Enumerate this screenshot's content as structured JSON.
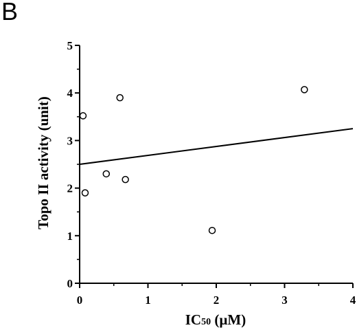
{
  "panel_label": "B",
  "chart_data": {
    "type": "scatter",
    "title": "",
    "xlabel_main": "IC",
    "xlabel_sub": "50",
    "xlabel_unit": " (µM)",
    "ylabel": "Topo II activity (unit)",
    "xlim": [
      0,
      4
    ],
    "ylim": [
      0,
      5
    ],
    "xticks": [
      0,
      1,
      2,
      3,
      4
    ],
    "yticks": [
      0,
      1,
      2,
      3,
      4,
      5
    ],
    "points": [
      {
        "x": 0.05,
        "y": 3.52
      },
      {
        "x": 0.08,
        "y": 1.9
      },
      {
        "x": 0.39,
        "y": 2.3
      },
      {
        "x": 0.59,
        "y": 3.9
      },
      {
        "x": 0.67,
        "y": 2.18
      },
      {
        "x": 1.94,
        "y": 1.11
      },
      {
        "x": 3.29,
        "y": 4.07
      }
    ],
    "fit_line": {
      "x": [
        0,
        4
      ],
      "y": [
        2.5,
        3.25
      ]
    },
    "grid": false,
    "legend": "none"
  }
}
